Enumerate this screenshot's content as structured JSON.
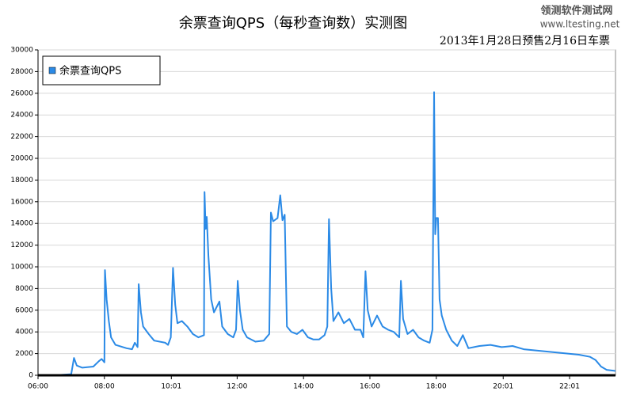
{
  "chart_data": {
    "type": "line",
    "title": "余票查询QPS（每秒查询数）实测图",
    "subtitle": "2013年1月28日预售2月16日车票",
    "annotations": [
      "领测软件测试网",
      "www.ltesting.net"
    ],
    "x": [
      "06:00",
      "06:30",
      "07:00",
      "07:05",
      "07:10",
      "07:20",
      "07:40",
      "07:50",
      "07:55",
      "08:00",
      "08:01",
      "08:04",
      "08:08",
      "08:12",
      "08:20",
      "08:40",
      "08:50",
      "08:55",
      "09:00",
      "09:02",
      "09:06",
      "09:10",
      "09:20",
      "09:30",
      "09:50",
      "09:55",
      "10:00",
      "10:04",
      "10:08",
      "10:12",
      "10:20",
      "10:30",
      "10:40",
      "10:50",
      "11:00",
      "11:01",
      "11:03",
      "11:05",
      "11:08",
      "11:13",
      "11:18",
      "11:28",
      "11:33",
      "11:43",
      "11:53",
      "11:58",
      "12:01",
      "12:05",
      "12:10",
      "12:18",
      "12:33",
      "12:48",
      "12:58",
      "13:01",
      "13:05",
      "13:13",
      "13:18",
      "13:22",
      "13:26",
      "13:30",
      "13:38",
      "13:48",
      "13:58",
      "14:08",
      "14:18",
      "14:28",
      "14:38",
      "14:43",
      "14:46",
      "14:50",
      "14:54",
      "15:03",
      "15:13",
      "15:23",
      "15:33",
      "15:43",
      "15:48",
      "15:52",
      "15:56",
      "16:03",
      "16:13",
      "16:23",
      "16:33",
      "16:43",
      "16:53",
      "16:56",
      "17:00",
      "17:08",
      "17:18",
      "17:28",
      "17:38",
      "17:48",
      "17:53",
      "17:56",
      "17:58",
      "18:00",
      "18:03",
      "18:06",
      "18:10",
      "18:18",
      "18:28",
      "18:38",
      "18:48",
      "18:58",
      "19:18",
      "19:38",
      "19:58",
      "20:18",
      "20:38",
      "20:58",
      "21:18",
      "21:38",
      "21:58",
      "22:18",
      "22:38",
      "22:48",
      "22:58",
      "23:08",
      "23:24"
    ],
    "series": [
      {
        "name": "余票查询QPS",
        "color": "#2b8ae6",
        "values": [
          0,
          0,
          100,
          1600,
          900,
          700,
          800,
          1300,
          1500,
          1200,
          9700,
          7000,
          5000,
          3500,
          2800,
          2500,
          2400,
          3000,
          2600,
          8400,
          5800,
          4500,
          3800,
          3200,
          3000,
          2800,
          3500,
          9900,
          6500,
          4800,
          5000,
          4500,
          3800,
          3500,
          3700,
          16900,
          13500,
          14600,
          11000,
          7000,
          5800,
          6800,
          4500,
          3800,
          3500,
          4200,
          8700,
          6000,
          4200,
          3500,
          3100,
          3200,
          3800,
          15000,
          14200,
          14500,
          16600,
          14300,
          14800,
          4500,
          4000,
          3800,
          4200,
          3500,
          3300,
          3300,
          3700,
          4500,
          14400,
          8000,
          5000,
          5800,
          4800,
          5200,
          4200,
          4200,
          3500,
          9600,
          6000,
          4500,
          5500,
          4500,
          4200,
          4000,
          3500,
          8700,
          5200,
          3800,
          4200,
          3500,
          3200,
          3000,
          4200,
          26100,
          13000,
          14500,
          14500,
          7000,
          5500,
          4200,
          3200,
          2700,
          3700,
          2500,
          2700,
          2800,
          2600,
          2700,
          2400,
          2300,
          2200,
          2100,
          2000,
          1900,
          1700,
          1400,
          800,
          500,
          400
        ]
      }
    ],
    "xlim": [
      "06:00",
      "23:24"
    ],
    "xticks": [
      "06:00",
      "08:00",
      "10:01",
      "12:00",
      "14:00",
      "16:00",
      "18:00",
      "20:01",
      "22:01"
    ],
    "ylim": [
      0,
      30000
    ],
    "yticks": [
      0,
      2000,
      4000,
      6000,
      8000,
      10000,
      12000,
      14000,
      16000,
      18000,
      20000,
      22000,
      24000,
      26000,
      28000,
      30000
    ],
    "grid": true
  }
}
